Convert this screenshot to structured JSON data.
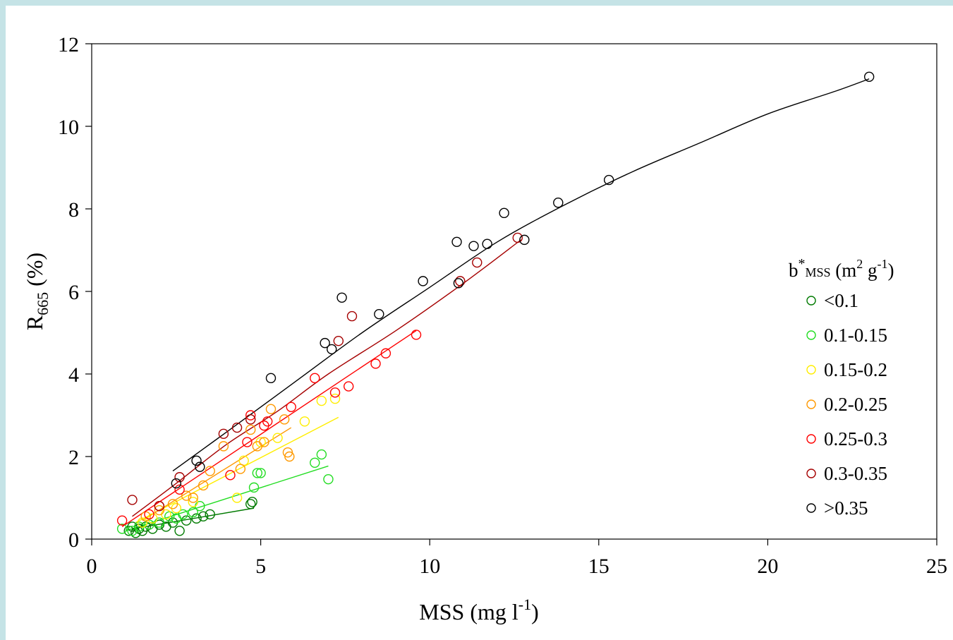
{
  "chart_data": {
    "type": "scatter",
    "xlabel": {
      "main": "MSS (mg l",
      "sup": "-1",
      "tail": ")"
    },
    "ylabel": {
      "main": "R",
      "sub": "665",
      "tail": " (%)"
    },
    "xlim": [
      0,
      25
    ],
    "ylim": [
      0,
      12
    ],
    "xticks": [
      0,
      5,
      10,
      15,
      20,
      25
    ],
    "yticks": [
      0,
      2,
      4,
      6,
      8,
      10,
      12
    ],
    "grid": false,
    "legend_position": "right",
    "legend_title": {
      "b": "b",
      "star": "*",
      "sub": "MSS",
      "open": " (m",
      "sup2": "2",
      "g": " g",
      "supm1": "-1",
      "close": ")"
    },
    "series": [
      {
        "name": "<0.1",
        "color": "#007a00",
        "points": [
          [
            1.1,
            0.2
          ],
          [
            1.2,
            0.3
          ],
          [
            1.3,
            0.15
          ],
          [
            1.4,
            0.25
          ],
          [
            1.5,
            0.2
          ],
          [
            1.6,
            0.3
          ],
          [
            1.8,
            0.25
          ],
          [
            2.0,
            0.35
          ],
          [
            2.2,
            0.3
          ],
          [
            2.4,
            0.4
          ],
          [
            2.6,
            0.2
          ],
          [
            2.8,
            0.45
          ],
          [
            3.1,
            0.5
          ],
          [
            3.3,
            0.55
          ],
          [
            3.5,
            0.6
          ],
          [
            4.7,
            0.85
          ],
          [
            4.75,
            0.9
          ]
        ],
        "fit": [
          [
            1.0,
            0.22
          ],
          [
            4.8,
            0.75
          ]
        ]
      },
      {
        "name": "0.1-0.15",
        "color": "#22dd22",
        "points": [
          [
            0.9,
            0.25
          ],
          [
            1.2,
            0.2
          ],
          [
            1.4,
            0.3
          ],
          [
            1.7,
            0.35
          ],
          [
            2.0,
            0.4
          ],
          [
            2.3,
            0.55
          ],
          [
            2.5,
            0.5
          ],
          [
            2.7,
            0.6
          ],
          [
            3.0,
            0.65
          ],
          [
            3.2,
            0.8
          ],
          [
            4.8,
            1.25
          ],
          [
            4.9,
            1.6
          ],
          [
            5.0,
            1.6
          ],
          [
            6.6,
            1.85
          ],
          [
            6.8,
            2.05
          ],
          [
            7.0,
            1.45
          ]
        ],
        "fit": [
          [
            1.0,
            0.2
          ],
          [
            7.0,
            1.77
          ]
        ]
      },
      {
        "name": "0.15-0.2",
        "color": "#ffee00",
        "points": [
          [
            1.5,
            0.4
          ],
          [
            1.8,
            0.5
          ],
          [
            2.2,
            0.6
          ],
          [
            2.5,
            0.75
          ],
          [
            3.0,
            0.9
          ],
          [
            4.3,
            1.0
          ],
          [
            4.5,
            1.9
          ],
          [
            5.0,
            2.35
          ],
          [
            5.5,
            2.45
          ],
          [
            6.3,
            2.85
          ],
          [
            6.8,
            3.35
          ],
          [
            7.2,
            3.4
          ]
        ],
        "fit": [
          [
            1.3,
            0.4
          ],
          [
            7.3,
            2.95
          ]
        ]
      },
      {
        "name": "0.2-0.25",
        "color": "#ff9900",
        "points": [
          [
            1.6,
            0.55
          ],
          [
            2.0,
            0.7
          ],
          [
            2.4,
            0.85
          ],
          [
            2.8,
            1.05
          ],
          [
            3.0,
            1.0
          ],
          [
            3.3,
            1.3
          ],
          [
            3.5,
            1.65
          ],
          [
            3.9,
            2.25
          ],
          [
            4.4,
            1.7
          ],
          [
            4.7,
            2.65
          ],
          [
            4.9,
            2.25
          ],
          [
            5.1,
            2.35
          ],
          [
            5.3,
            3.15
          ],
          [
            5.7,
            2.9
          ],
          [
            5.8,
            2.1
          ],
          [
            5.85,
            2.0
          ]
        ],
        "fit": [
          [
            1.5,
            0.45
          ],
          [
            5.9,
            2.7
          ]
        ]
      },
      {
        "name": "0.25-0.3",
        "color": "#ff0000",
        "points": [
          [
            0.9,
            0.45
          ],
          [
            1.7,
            0.6
          ],
          [
            2.0,
            0.8
          ],
          [
            2.6,
            1.2
          ],
          [
            4.1,
            1.55
          ],
          [
            4.6,
            2.35
          ],
          [
            4.7,
            3.0
          ],
          [
            5.1,
            2.75
          ],
          [
            5.2,
            2.85
          ],
          [
            5.9,
            3.2
          ],
          [
            6.6,
            3.9
          ],
          [
            7.2,
            3.55
          ],
          [
            7.6,
            3.7
          ],
          [
            8.4,
            4.25
          ],
          [
            8.7,
            4.5
          ],
          [
            9.6,
            4.95
          ]
        ],
        "fit": [
          [
            0.9,
            0.3
          ],
          [
            9.6,
            5.05
          ]
        ]
      },
      {
        "name": "0.3-0.35",
        "color": "#a50000",
        "points": [
          [
            1.2,
            0.95
          ],
          [
            2.0,
            0.8
          ],
          [
            2.6,
            1.5
          ],
          [
            3.9,
            2.55
          ],
          [
            4.3,
            2.7
          ],
          [
            4.7,
            2.9
          ],
          [
            7.3,
            4.8
          ],
          [
            7.7,
            5.4
          ],
          [
            10.9,
            6.25
          ],
          [
            11.4,
            6.7
          ],
          [
            12.6,
            7.3
          ]
        ],
        "fit": [
          [
            1.2,
            0.55
          ],
          [
            2.5,
            1.35
          ],
          [
            4.0,
            2.3
          ],
          [
            5.5,
            3.1
          ],
          [
            7.0,
            4.0
          ],
          [
            9.0,
            5.05
          ],
          [
            11.0,
            6.2
          ],
          [
            12.7,
            7.25
          ]
        ],
        "fit_smooth": true
      },
      {
        "name": ">0.35",
        "color": "#000000",
        "points": [
          [
            2.5,
            1.35
          ],
          [
            3.1,
            1.9
          ],
          [
            3.2,
            1.75
          ],
          [
            5.3,
            3.9
          ],
          [
            6.9,
            4.75
          ],
          [
            7.1,
            4.6
          ],
          [
            7.4,
            5.85
          ],
          [
            8.5,
            5.45
          ],
          [
            9.8,
            6.25
          ],
          [
            10.8,
            7.2
          ],
          [
            10.85,
            6.2
          ],
          [
            11.3,
            7.1
          ],
          [
            11.7,
            7.15
          ],
          [
            12.2,
            7.9
          ],
          [
            12.8,
            7.25
          ],
          [
            13.8,
            8.15
          ],
          [
            15.3,
            8.7
          ],
          [
            23.0,
            11.2
          ]
        ],
        "fit": [
          [
            2.4,
            1.65
          ],
          [
            4.0,
            2.6
          ],
          [
            6.0,
            3.8
          ],
          [
            8.0,
            5.0
          ],
          [
            10.0,
            6.1
          ],
          [
            12.0,
            7.2
          ],
          [
            14.0,
            8.1
          ],
          [
            16.0,
            8.9
          ],
          [
            18.0,
            9.6
          ],
          [
            20.0,
            10.3
          ],
          [
            22.0,
            10.85
          ],
          [
            23.0,
            11.15
          ]
        ],
        "fit_smooth": true
      }
    ]
  }
}
